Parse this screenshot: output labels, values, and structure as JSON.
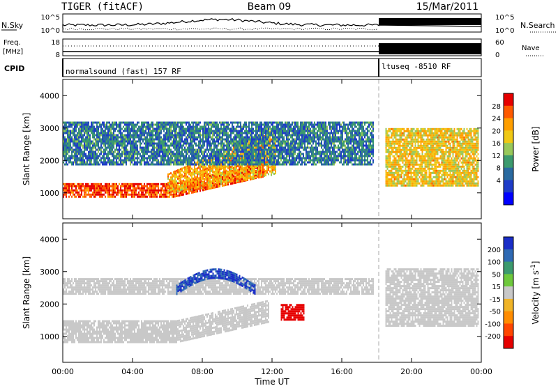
{
  "header": {
    "site": "TIGER (fitACF)",
    "beam": "Beam 09",
    "date": "15/Mar/2011"
  },
  "top_panel": {
    "left_label": "N.Sky",
    "right_label": "N.Search",
    "left_ticks": [
      "10^5",
      "10^0"
    ],
    "right_ticks": [
      "10^5",
      "10^0"
    ]
  },
  "freq_panel": {
    "left_label_line1": "Freq.",
    "left_label_line2": "[MHz]",
    "left_ticks": [
      "18",
      "8"
    ],
    "right_ticks": [
      "60",
      "0"
    ],
    "right_label": "Nave"
  },
  "cpid_panel": {
    "label": "CPID",
    "mode_1": "normalsound (fast) 157 RF",
    "mode_2": "ltuseq -8510 RF"
  },
  "chart_data": [
    {
      "type": "heatmap",
      "quantity": "Power",
      "ylabel": "Slant Range [km]",
      "ylim": [
        200,
        4500
      ],
      "yticks": [
        1000,
        2000,
        3000,
        4000
      ],
      "xlim_hours": [
        0,
        24
      ],
      "colorbar_label": "Power [dB]",
      "colorbar_ticks": [
        "28",
        "24",
        "20",
        "16",
        "12",
        "8",
        "4"
      ],
      "colorbar_colors": [
        "#e60000",
        "#ff5a00",
        "#ff9f00",
        "#f0c814",
        "#98c85a",
        "#3c9a6e",
        "#2a6aa0",
        "#1e3cc8",
        "#0000ff"
      ],
      "features": [
        {
          "name": "strong E-region band",
          "x_start": 0.0,
          "x_end": 11.5,
          "range_low": 900,
          "range_high": 1300,
          "level_db": 28
        },
        {
          "name": "rising arc",
          "x_start": 6.0,
          "x_end": 12.2,
          "range_low": 1000,
          "range_high": 2400,
          "level_db": 22
        },
        {
          "name": "upper scatter",
          "x_start": 0.0,
          "x_end": 17.8,
          "range_low": 1900,
          "range_high": 3200,
          "level_db": 10
        },
        {
          "name": "evening patch",
          "x_start": 18.5,
          "x_end": 23.8,
          "range_low": 1200,
          "range_high": 3000,
          "level_db": 20
        }
      ]
    },
    {
      "type": "heatmap",
      "quantity": "Velocity",
      "ylabel": "Slant Range [km]",
      "ylim": [
        200,
        4500
      ],
      "yticks": [
        1000,
        2000,
        3000,
        4000
      ],
      "xlim_hours": [
        0,
        24
      ],
      "colorbar_label": "Velocity [m s^-1]",
      "colorbar_ticks": [
        "200",
        "100",
        "50",
        "15",
        "-15",
        "-50",
        "-100",
        "-200"
      ],
      "colorbar_colors": [
        "#1a2ec8",
        "#2f6ab4",
        "#3c9a6e",
        "#6ec83c",
        "#c8c8c8",
        "#f0b428",
        "#ff8c00",
        "#ff4600",
        "#e60000"
      ],
      "features": [
        {
          "name": "ground scatter band",
          "x_start": 0.0,
          "x_end": 11.8,
          "range_low": 800,
          "range_high": 1500,
          "velocity": 0
        },
        {
          "name": "upper grey band",
          "x_start": 0.0,
          "x_end": 17.8,
          "range_low": 2300,
          "range_high": 2800,
          "velocity": 0
        },
        {
          "name": "positive arc",
          "x_start": 6.5,
          "x_end": 11.0,
          "range_low": 2200,
          "range_high": 3200,
          "velocity": 150
        },
        {
          "name": "negative patch",
          "x_start": 12.5,
          "x_end": 13.8,
          "range_low": 1500,
          "range_high": 2000,
          "velocity": -180
        },
        {
          "name": "evening ground scatter",
          "x_start": 18.5,
          "x_end": 23.8,
          "range_low": 1300,
          "range_high": 3100,
          "velocity": 0
        }
      ]
    }
  ],
  "x_axis": {
    "ticks": [
      "00:00",
      "04:00",
      "08:00",
      "12:00",
      "16:00",
      "20:00",
      "00:00"
    ],
    "label": "Time UT"
  }
}
